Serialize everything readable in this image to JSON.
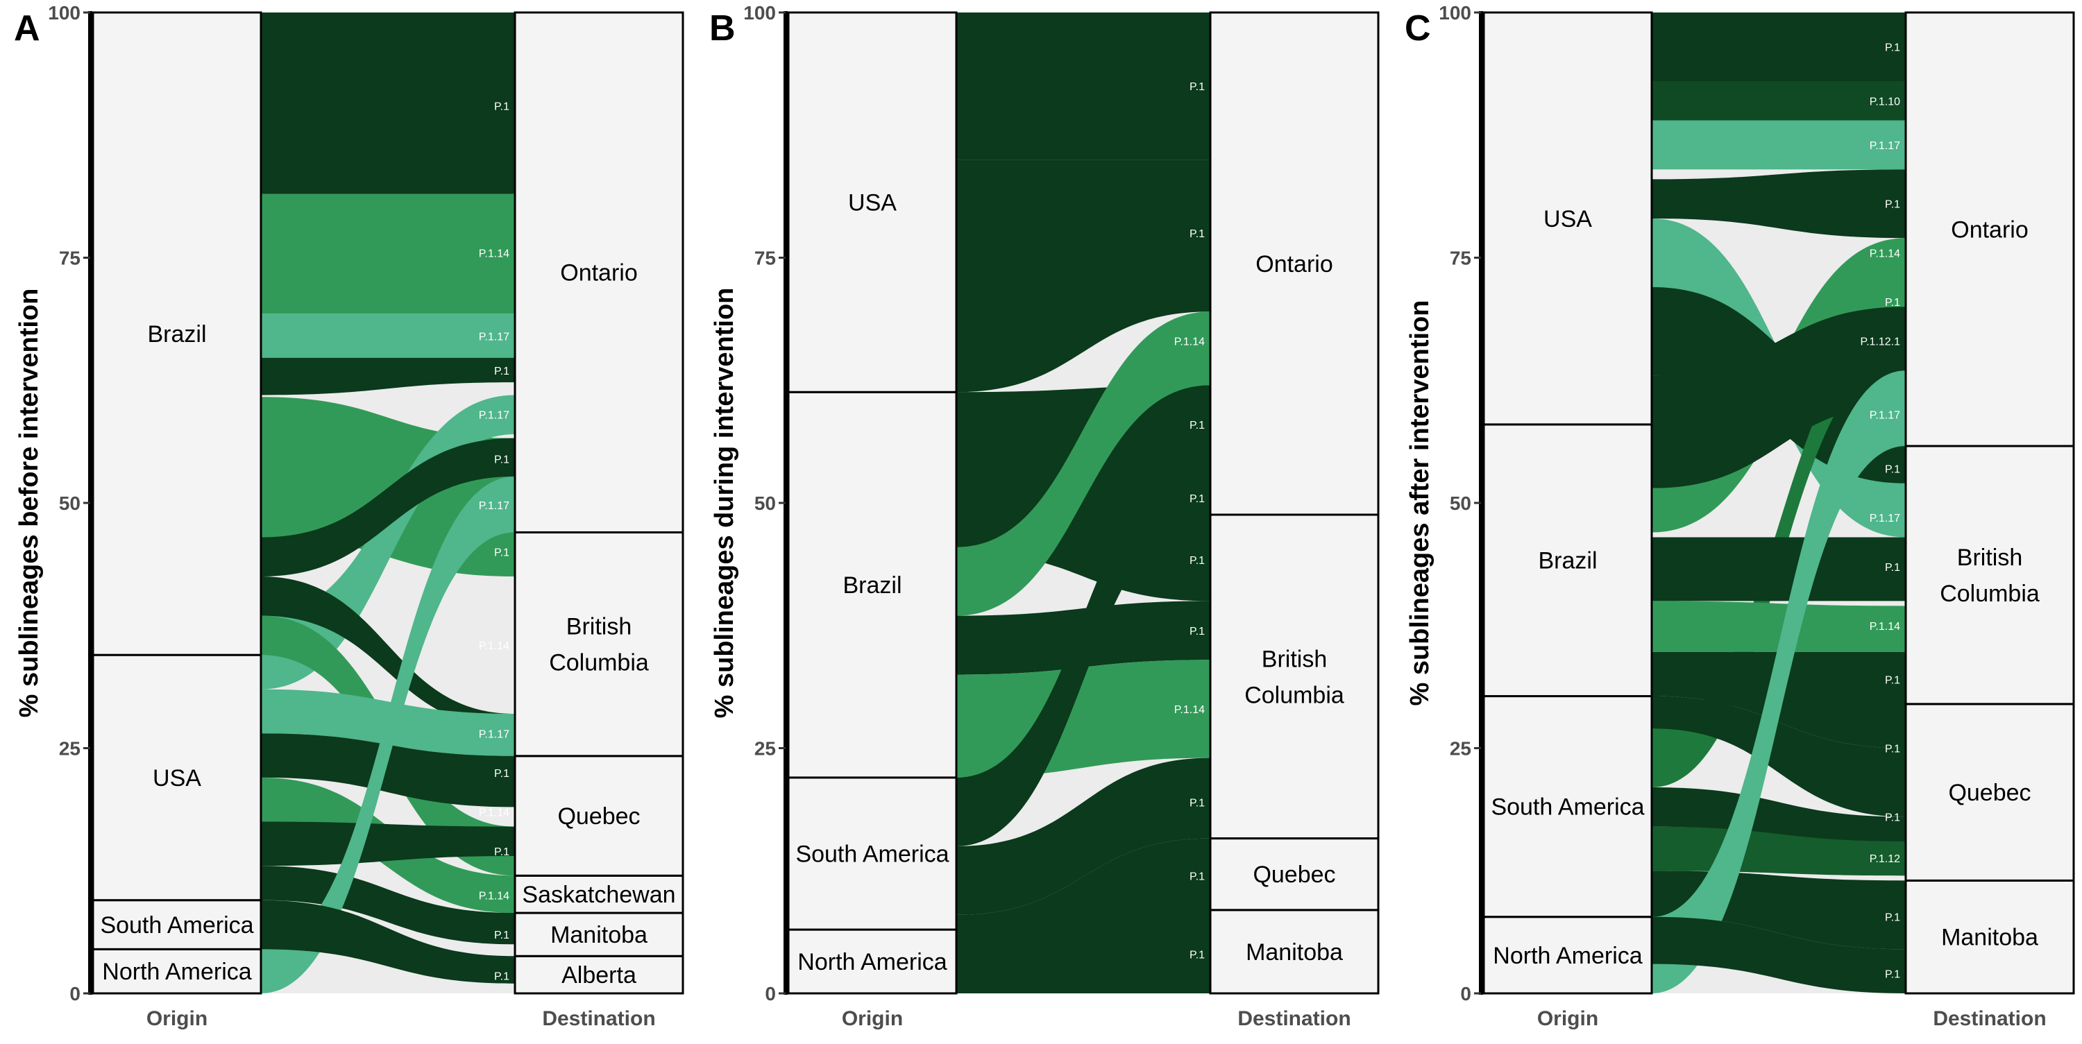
{
  "colors": {
    "P.1": "#0b3a1c",
    "P.1.14": "#329a58",
    "P.1.17": "#50b68c",
    "P.1.10": "#0f4a24",
    "P.1.12.1": "#1e7a3c",
    "P.1.12": "#155d2c",
    "stratum_fill": "#f4f4f4",
    "gap_fill": "#ececec"
  },
  "chart_data": [
    {
      "type": "alluvial",
      "panel": "A",
      "ylabel": "% sublineages before intervention",
      "axes": [
        "Origin",
        "Destination"
      ],
      "y_ticks": [
        0,
        25,
        50,
        75,
        100
      ],
      "ylim": [
        0,
        100
      ],
      "origin_strata": [
        {
          "name": "North America",
          "from": 0,
          "to": 4.5
        },
        {
          "name": "South America",
          "from": 4.5,
          "to": 9.5
        },
        {
          "name": "USA",
          "from": 9.5,
          "to": 34.5
        },
        {
          "name": "Brazil",
          "from": 34.5,
          "to": 100
        }
      ],
      "destination_strata": [
        {
          "name": "Alberta",
          "from": 0,
          "to": 3.8
        },
        {
          "name": "Manitoba",
          "from": 3.8,
          "to": 8.2
        },
        {
          "name": "Saskatchewan",
          "from": 8.2,
          "to": 12
        },
        {
          "name": "Quebec",
          "from": 12,
          "to": 24.2
        },
        {
          "name": "British Columbia",
          "from": 24.2,
          "to": 47
        },
        {
          "name": "Ontario",
          "from": 47,
          "to": 100
        }
      ],
      "flows": [
        {
          "lineage": "P.1",
          "y0": 81.5,
          "y1": 100,
          "d0": 81.5,
          "d1": 100
        },
        {
          "lineage": "P.1.14",
          "y0": 69.3,
          "y1": 81.5,
          "d0": 69.3,
          "d1": 81.5
        },
        {
          "lineage": "P.1.17",
          "y0": 64.8,
          "y1": 69.3,
          "d0": 64.8,
          "d1": 69.3
        },
        {
          "lineage": "P.1",
          "y0": 61,
          "y1": 64.8,
          "d0": 62.3,
          "d1": 64.8
        },
        {
          "lineage": "P.1.14",
          "y0": 46.5,
          "y1": 60.8,
          "d0": 42.5,
          "d1": 56.6
        },
        {
          "lineage": "P.1.17",
          "y0": 31,
          "y1": 38.5,
          "d0": 57,
          "d1": 61
        },
        {
          "lineage": "P.1",
          "y0": 42.5,
          "y1": 46.5,
          "d0": 52.7,
          "d1": 56.6
        },
        {
          "lineage": "P.1",
          "y0": 38.5,
          "y1": 42.5,
          "d0": 27,
          "d1": 28.5
        },
        {
          "lineage": "P.1.14",
          "y0": 34.5,
          "y1": 38.5,
          "d0": 12,
          "d1": 17
        },
        {
          "lineage": "P.1.17",
          "y0": 26.5,
          "y1": 31,
          "d0": 24.2,
          "d1": 28.5
        },
        {
          "lineage": "P.1",
          "y0": 22,
          "y1": 26.5,
          "d0": 19,
          "d1": 24.2
        },
        {
          "lineage": "P.1.14",
          "y0": 17.5,
          "y1": 22,
          "d0": 8.2,
          "d1": 12
        },
        {
          "lineage": "P.1",
          "y0": 13,
          "y1": 17.5,
          "d0": 14,
          "d1": 17
        },
        {
          "lineage": "P.1",
          "y0": 9.5,
          "y1": 13,
          "d0": 5,
          "d1": 8.2
        },
        {
          "lineage": "P.1.17",
          "y0": 0,
          "y1": 4.5,
          "d0": 47,
          "d1": 52.7
        },
        {
          "lineage": "P.1",
          "y0": 4.5,
          "y1": 9.5,
          "d0": 1,
          "d1": 3.8
        }
      ],
      "flow_labels": [
        {
          "text": "P.1",
          "y": 90.5
        },
        {
          "text": "P.1.14",
          "y": 75.5
        },
        {
          "text": "P.1.17",
          "y": 67
        },
        {
          "text": "P.1",
          "y": 63.5
        },
        {
          "text": "P.1.17",
          "y": 59
        },
        {
          "text": "P.1",
          "y": 54.5
        },
        {
          "text": "P.1.17",
          "y": 49.8
        },
        {
          "text": "P.1",
          "y": 45
        },
        {
          "text": "P.1.14",
          "y": 35.5
        },
        {
          "text": "P.1.17",
          "y": 26.5
        },
        {
          "text": "P.1",
          "y": 22.5
        },
        {
          "text": "P.1.14",
          "y": 18.5
        },
        {
          "text": "P.1",
          "y": 14.5
        },
        {
          "text": "P.1.14",
          "y": 10
        },
        {
          "text": "P.1",
          "y": 6
        },
        {
          "text": "P.1",
          "y": 1.8
        }
      ]
    },
    {
      "type": "alluvial",
      "panel": "B",
      "ylabel": "% sublineages during intervention",
      "axes": [
        "Origin",
        "Destination"
      ],
      "y_ticks": [
        0,
        25,
        50,
        75,
        100
      ],
      "ylim": [
        0,
        100
      ],
      "origin_strata": [
        {
          "name": "North America",
          "from": 0,
          "to": 6.5
        },
        {
          "name": "South America",
          "from": 6.5,
          "to": 22
        },
        {
          "name": "Brazil",
          "from": 22,
          "to": 61.3
        },
        {
          "name": "USA",
          "from": 61.3,
          "to": 100
        }
      ],
      "destination_strata": [
        {
          "name": "Manitoba",
          "from": 0,
          "to": 8.5
        },
        {
          "name": "Quebec",
          "from": 8.5,
          "to": 15.8
        },
        {
          "name": "British Columbia",
          "from": 15.8,
          "to": 48.8
        },
        {
          "name": "Ontario",
          "from": 48.8,
          "to": 100
        }
      ],
      "flows": [
        {
          "lineage": "P.1",
          "y0": 85,
          "y1": 100,
          "d0": 85,
          "d1": 100
        },
        {
          "lineage": "P.1",
          "y0": 61.3,
          "y1": 85,
          "d0": 69.5,
          "d1": 85
        },
        {
          "lineage": "P.1",
          "y0": 45,
          "y1": 61.3,
          "d0": 40,
          "d1": 62
        },
        {
          "lineage": "P.1.14",
          "y0": 38.5,
          "y1": 45.5,
          "d0": 62,
          "d1": 69.5
        },
        {
          "lineage": "P.1",
          "y0": 32.5,
          "y1": 38.5,
          "d0": 34,
          "d1": 40
        },
        {
          "lineage": "P.1.14",
          "y0": 22,
          "y1": 32.5,
          "d0": 24,
          "d1": 34
        },
        {
          "lineage": "P.1",
          "y0": 15,
          "y1": 22,
          "d0": 48.8,
          "d1": 55
        },
        {
          "lineage": "P.1",
          "y0": 8,
          "y1": 15,
          "d0": 15.8,
          "d1": 24
        },
        {
          "lineage": "P.1",
          "y0": 0,
          "y1": 8,
          "d0": 0,
          "d1": 15.8
        }
      ],
      "flow_labels": [
        {
          "text": "P.1",
          "y": 92.5
        },
        {
          "text": "P.1",
          "y": 77.5
        },
        {
          "text": "P.1.14",
          "y": 66.5
        },
        {
          "text": "P.1",
          "y": 58
        },
        {
          "text": "P.1",
          "y": 50.5
        },
        {
          "text": "P.1",
          "y": 44.2
        },
        {
          "text": "P.1",
          "y": 37
        },
        {
          "text": "P.1.14",
          "y": 29
        },
        {
          "text": "P.1",
          "y": 19.5
        },
        {
          "text": "P.1",
          "y": 12
        },
        {
          "text": "P.1",
          "y": 4
        }
      ]
    },
    {
      "type": "alluvial",
      "panel": "C",
      "ylabel": "% sublineages after intervention",
      "axes": [
        "Origin",
        "Destination"
      ],
      "y_ticks": [
        0,
        25,
        50,
        75,
        100
      ],
      "ylim": [
        0,
        100
      ],
      "origin_strata": [
        {
          "name": "North America",
          "from": 0,
          "to": 7.8
        },
        {
          "name": "South America",
          "from": 7.8,
          "to": 30.3
        },
        {
          "name": "Brazil",
          "from": 30.3,
          "to": 58
        },
        {
          "name": "USA",
          "from": 58,
          "to": 100
        }
      ],
      "destination_strata": [
        {
          "name": "Manitoba",
          "from": 0,
          "to": 11.5
        },
        {
          "name": "Quebec",
          "from": 11.5,
          "to": 29.5
        },
        {
          "name": "British Columbia",
          "from": 29.5,
          "to": 55.8
        },
        {
          "name": "Ontario",
          "from": 55.8,
          "to": 100
        }
      ],
      "flows": [
        {
          "lineage": "P.1",
          "y0": 93,
          "y1": 100,
          "d0": 93,
          "d1": 100
        },
        {
          "lineage": "P.1.10",
          "y0": 89,
          "y1": 93,
          "d0": 89,
          "d1": 93
        },
        {
          "lineage": "P.1.17",
          "y0": 84,
          "y1": 89,
          "d0": 84,
          "d1": 89
        },
        {
          "lineage": "P.1",
          "y0": 79,
          "y1": 83,
          "d0": 77,
          "d1": 84
        },
        {
          "lineage": "P.1.17",
          "y0": 72,
          "y1": 79,
          "d0": 46.5,
          "d1": 52
        },
        {
          "lineage": "P.1.14",
          "y0": 47,
          "y1": 51.5,
          "d0": 70,
          "d1": 77
        },
        {
          "lineage": "P.1",
          "y0": 63,
          "y1": 72,
          "d0": 52,
          "d1": 60
        },
        {
          "lineage": "P.1.12.1",
          "y0": 21,
          "y1": 27,
          "d0": 65,
          "d1": 68.5
        },
        {
          "lineage": "P.1",
          "y0": 51.5,
          "y1": 63,
          "d0": 60,
          "d1": 70
        },
        {
          "lineage": "P.1",
          "y0": 40,
          "y1": 46.5,
          "d0": 40,
          "d1": 46.5
        },
        {
          "lineage": "P.1.14",
          "y0": 34.8,
          "y1": 40,
          "d0": 34.8,
          "d1": 39.5
        },
        {
          "lineage": "P.1",
          "y0": 30.3,
          "y1": 34.8,
          "d0": 25,
          "d1": 34.8
        },
        {
          "lineage": "P.1",
          "y0": 27,
          "y1": 30.3,
          "d0": 18,
          "d1": 25
        },
        {
          "lineage": "P.1",
          "y0": 17,
          "y1": 21,
          "d0": 15,
          "d1": 18
        },
        {
          "lineage": "P.1.12",
          "y0": 12.5,
          "y1": 17,
          "d0": 12,
          "d1": 15.5
        },
        {
          "lineage": "P.1",
          "y0": 7.8,
          "y1": 12.5,
          "d0": 4.5,
          "d1": 11.5
        },
        {
          "lineage": "P.1.17",
          "y0": 0,
          "y1": 7.8,
          "d0": 55.8,
          "d1": 63.5
        },
        {
          "lineage": "P.1",
          "y0": 3,
          "y1": 7.8,
          "d0": 0,
          "d1": 4.5
        }
      ],
      "flow_labels": [
        {
          "text": "P.1",
          "y": 96.5
        },
        {
          "text": "P.1.10",
          "y": 91
        },
        {
          "text": "P.1.17",
          "y": 86.5
        },
        {
          "text": "P.1",
          "y": 80.5
        },
        {
          "text": "P.1.14",
          "y": 75.5
        },
        {
          "text": "P.1",
          "y": 70.5
        },
        {
          "text": "P.1.12.1",
          "y": 66.5
        },
        {
          "text": "P.1.17",
          "y": 59
        },
        {
          "text": "P.1",
          "y": 53.5
        },
        {
          "text": "P.1.17",
          "y": 48.5
        },
        {
          "text": "P.1",
          "y": 43.5
        },
        {
          "text": "P.1.14",
          "y": 37.5
        },
        {
          "text": "P.1",
          "y": 32
        },
        {
          "text": "P.1",
          "y": 25
        },
        {
          "text": "P.1",
          "y": 18
        },
        {
          "text": "P.1.12",
          "y": 13.8
        },
        {
          "text": "P.1",
          "y": 7.8
        },
        {
          "text": "P.1",
          "y": 2
        }
      ]
    }
  ]
}
